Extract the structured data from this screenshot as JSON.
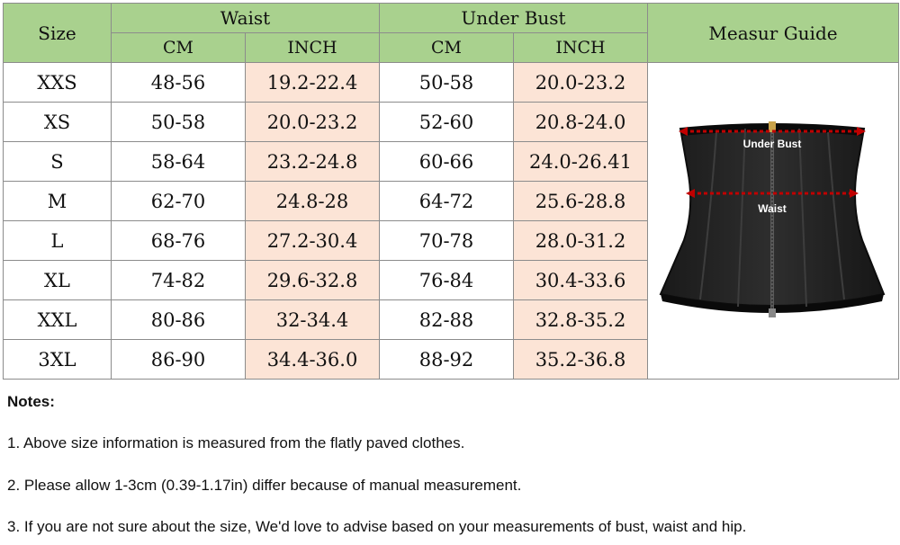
{
  "table": {
    "size_header": "Size",
    "waist_header": "Waist",
    "under_bust_header": "Under Bust",
    "guide_header": "Measur Guide",
    "cm_label": "CM",
    "inch_label": "INCH",
    "rows": [
      {
        "size": "XXS",
        "waist_cm": "48-56",
        "waist_inch": "19.2-22.4",
        "bust_cm": "50-58",
        "bust_inch": "20.0-23.2"
      },
      {
        "size": "XS",
        "waist_cm": "50-58",
        "waist_inch": "20.0-23.2",
        "bust_cm": "52-60",
        "bust_inch": "20.8-24.0"
      },
      {
        "size": "S",
        "waist_cm": "58-64",
        "waist_inch": "23.2-24.8",
        "bust_cm": "60-66",
        "bust_inch": "24.0-26.41"
      },
      {
        "size": "M",
        "waist_cm": "62-70",
        "waist_inch": "24.8-28",
        "bust_cm": "64-72",
        "bust_inch": "25.6-28.8"
      },
      {
        "size": "L",
        "waist_cm": "68-76",
        "waist_inch": "27.2-30.4",
        "bust_cm": "70-78",
        "bust_inch": "28.0-31.2"
      },
      {
        "size": "XL",
        "waist_cm": "74-82",
        "waist_inch": "29.6-32.8",
        "bust_cm": "76-84",
        "bust_inch": "30.4-33.6"
      },
      {
        "size": "XXL",
        "waist_cm": "80-86",
        "waist_inch": "32-34.4",
        "bust_cm": "82-88",
        "bust_inch": "32.8-35.2"
      },
      {
        "size": "3XL",
        "waist_cm": "86-90",
        "waist_inch": "34.4-36.0",
        "bust_cm": "88-92",
        "bust_inch": "35.2-36.8"
      }
    ]
  },
  "guide": {
    "under_bust_label": "Under Bust",
    "waist_label": "Waist",
    "arrow_color": "#c00000"
  },
  "notes": {
    "title": "Notes:",
    "items": [
      "1. Above size information is measured from the flatly paved clothes.",
      "2. Please allow 1-3cm (0.39-1.17in) differ because of manual measurement.",
      "3. If you are not sure about the size, We'd love to advise based on your measurements of bust, waist and hip."
    ]
  },
  "colors": {
    "header_green": "#a9d18e",
    "inch_peach": "#fce4d6",
    "border_gray": "#8c8c8c"
  }
}
